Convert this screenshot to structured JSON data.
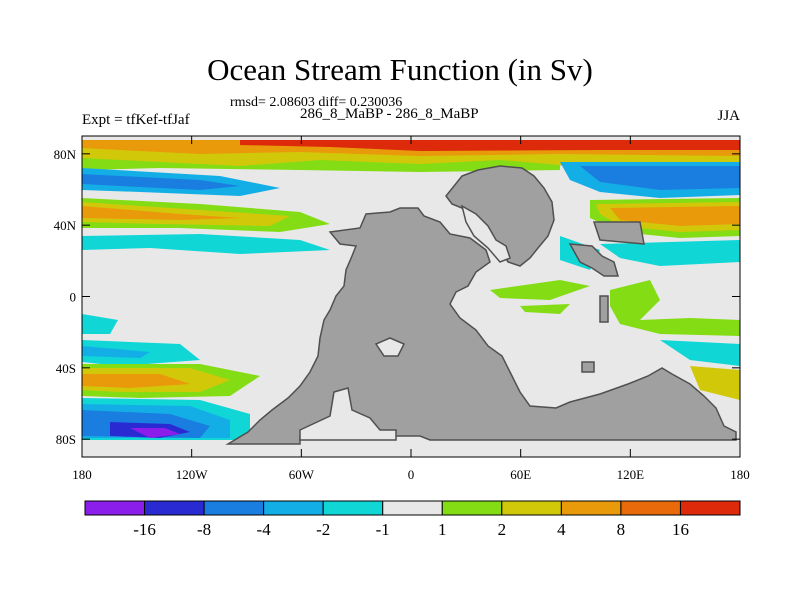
{
  "title": "Ocean Stream Function (in Sv)",
  "subtitle": "rmsd= 2.08603 diff= 0.230036",
  "left_label": "Expt = tfKef-tfJaf",
  "center_label": "286_8_MaBP - 286_8_MaBP",
  "right_label": "JJA",
  "x_ticks": [
    "180",
    "120W",
    "60W",
    "0",
    "60E",
    "120E",
    "180"
  ],
  "y_ticks": [
    "80N",
    "40N",
    "0",
    "40S",
    "80S"
  ],
  "colorbar": {
    "colors": [
      "#8c1eeb",
      "#2a2ad2",
      "#1a7ee0",
      "#14aee6",
      "#10d6d6",
      "#e8e8e8",
      "#84dc14",
      "#d2c80a",
      "#e89a0a",
      "#e86a0a",
      "#dc2a0a"
    ],
    "labels": [
      "-16",
      "-8",
      "-4",
      "-2",
      "-1",
      "1",
      "2",
      "4",
      "8",
      "16"
    ]
  },
  "land_color": "#a0a0a0",
  "ocean_neutral_color": "#e8e8e8"
}
